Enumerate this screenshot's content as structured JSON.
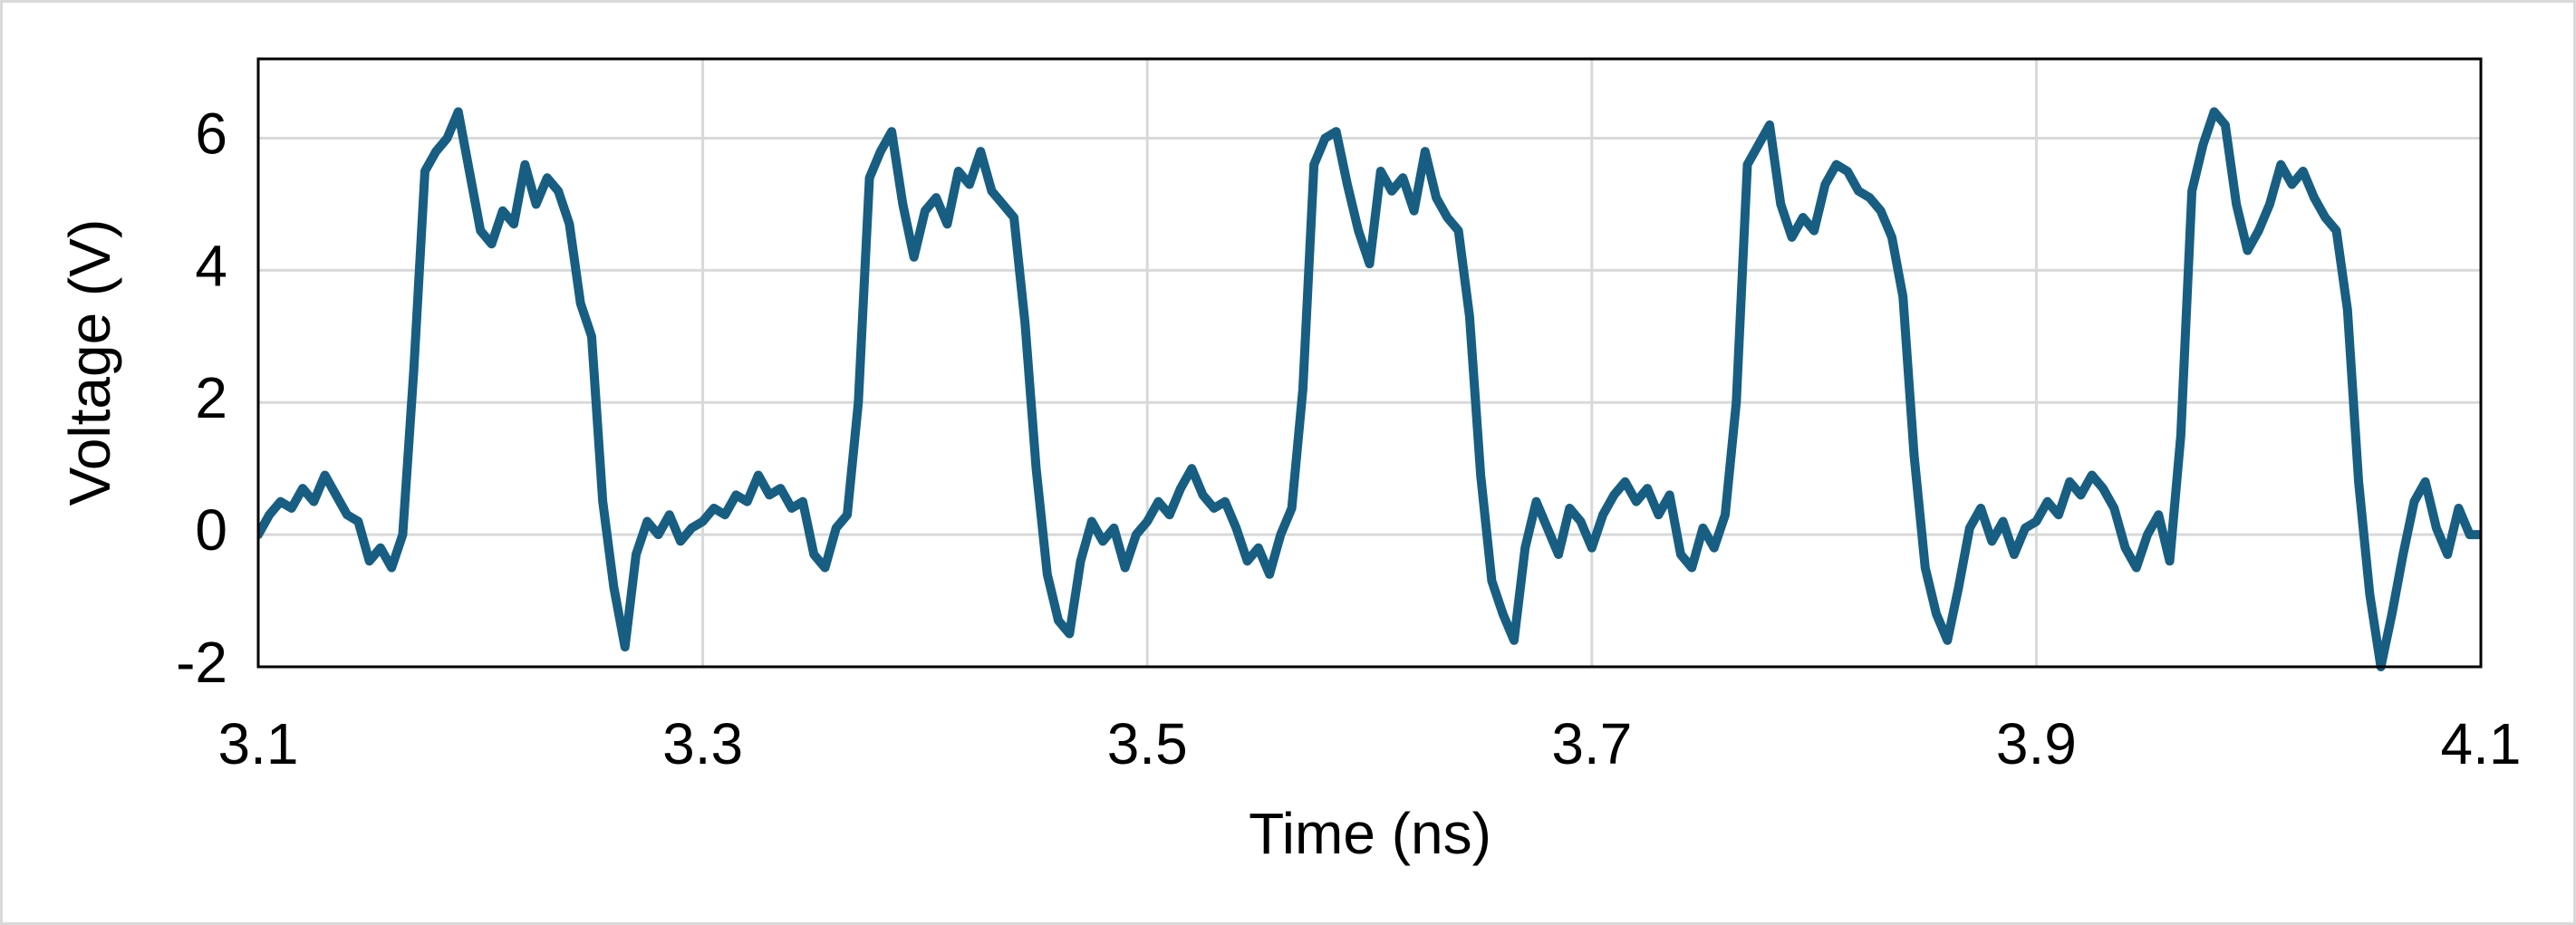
{
  "chart_data": {
    "type": "line",
    "x_label": "Time (ns)",
    "y_label": "Voltage (V)",
    "x": [
      3.1,
      3.105,
      3.11,
      3.115,
      3.12,
      3.125,
      3.13,
      3.135,
      3.14,
      3.145,
      3.15,
      3.155,
      3.16,
      3.165,
      3.17,
      3.175,
      3.18,
      3.185,
      3.19,
      3.195,
      3.2,
      3.205,
      3.21,
      3.215,
      3.22,
      3.225,
      3.23,
      3.235,
      3.24,
      3.245,
      3.25,
      3.255,
      3.26,
      3.265,
      3.27,
      3.275,
      3.28,
      3.285,
      3.29,
      3.295,
      3.3,
      3.305,
      3.31,
      3.315,
      3.32,
      3.325,
      3.33,
      3.335,
      3.34,
      3.345,
      3.35,
      3.355,
      3.36,
      3.365,
      3.37,
      3.375,
      3.38,
      3.385,
      3.39,
      3.395,
      3.4,
      3.405,
      3.41,
      3.415,
      3.42,
      3.425,
      3.43,
      3.435,
      3.44,
      3.445,
      3.45,
      3.455,
      3.46,
      3.465,
      3.47,
      3.475,
      3.48,
      3.485,
      3.49,
      3.495,
      3.5,
      3.505,
      3.51,
      3.515,
      3.52,
      3.525,
      3.53,
      3.535,
      3.54,
      3.545,
      3.55,
      3.555,
      3.56,
      3.565,
      3.57,
      3.575,
      3.58,
      3.585,
      3.59,
      3.595,
      3.6,
      3.605,
      3.61,
      3.615,
      3.62,
      3.625,
      3.63,
      3.635,
      3.64,
      3.645,
      3.65,
      3.655,
      3.66,
      3.665,
      3.67,
      3.675,
      3.68,
      3.685,
      3.69,
      3.695,
      3.7,
      3.705,
      3.71,
      3.715,
      3.72,
      3.725,
      3.73,
      3.735,
      3.74,
      3.745,
      3.75,
      3.755,
      3.76,
      3.765,
      3.77,
      3.775,
      3.78,
      3.785,
      3.79,
      3.795,
      3.8,
      3.805,
      3.81,
      3.815,
      3.82,
      3.825,
      3.83,
      3.835,
      3.84,
      3.845,
      3.85,
      3.855,
      3.86,
      3.865,
      3.87,
      3.875,
      3.88,
      3.885,
      3.89,
      3.895,
      3.9,
      3.905,
      3.91,
      3.915,
      3.92,
      3.925,
      3.93,
      3.935,
      3.94,
      3.945,
      3.95,
      3.955,
      3.96,
      3.965,
      3.97,
      3.975,
      3.98,
      3.985,
      3.99,
      3.995,
      4.0,
      4.005,
      4.01,
      4.015,
      4.02,
      4.025,
      4.03,
      4.035,
      4.04,
      4.045,
      4.05,
      4.055,
      4.06,
      4.065,
      4.07,
      4.075,
      4.08,
      4.085,
      4.09,
      4.095,
      4.1
    ],
    "series": [
      {
        "color": "#175e82",
        "values": [
          0.0,
          0.3,
          0.5,
          0.4,
          0.7,
          0.5,
          0.9,
          0.6,
          0.3,
          0.2,
          -0.4,
          -0.2,
          -0.5,
          0.0,
          2.5,
          5.5,
          5.8,
          6.0,
          6.4,
          5.5,
          4.6,
          4.4,
          4.9,
          4.7,
          5.6,
          5.0,
          5.4,
          5.2,
          4.7,
          3.5,
          3.0,
          0.5,
          -0.8,
          -1.7,
          -0.3,
          0.2,
          0.0,
          0.3,
          -0.1,
          0.1,
          0.2,
          0.4,
          0.3,
          0.6,
          0.5,
          0.9,
          0.6,
          0.7,
          0.4,
          0.5,
          -0.3,
          -0.5,
          0.1,
          0.3,
          2.0,
          5.4,
          5.8,
          6.1,
          5.0,
          4.2,
          4.9,
          5.1,
          4.7,
          5.5,
          5.3,
          5.8,
          5.2,
          5.0,
          4.8,
          3.2,
          1.0,
          -0.6,
          -1.3,
          -1.5,
          -0.4,
          0.2,
          -0.1,
          0.1,
          -0.5,
          0.0,
          0.2,
          0.5,
          0.3,
          0.7,
          1.0,
          0.6,
          0.4,
          0.5,
          0.1,
          -0.4,
          -0.2,
          -0.6,
          0.0,
          0.4,
          2.2,
          5.6,
          6.0,
          6.1,
          5.3,
          4.6,
          4.1,
          5.5,
          5.2,
          5.4,
          4.9,
          5.8,
          5.1,
          4.8,
          4.6,
          3.3,
          0.9,
          -0.7,
          -1.2,
          -1.6,
          -0.2,
          0.5,
          0.1,
          -0.3,
          0.4,
          0.2,
          -0.2,
          0.3,
          0.6,
          0.8,
          0.5,
          0.7,
          0.3,
          0.6,
          -0.3,
          -0.5,
          0.1,
          -0.2,
          0.3,
          2.0,
          5.6,
          5.9,
          6.2,
          5.0,
          4.5,
          4.8,
          4.6,
          5.3,
          5.6,
          5.5,
          5.2,
          5.1,
          4.9,
          4.5,
          3.6,
          1.2,
          -0.5,
          -1.2,
          -1.6,
          -0.8,
          0.1,
          0.4,
          -0.1,
          0.2,
          -0.3,
          0.1,
          0.2,
          0.5,
          0.3,
          0.8,
          0.6,
          0.9,
          0.7,
          0.4,
          -0.2,
          -0.5,
          0.0,
          0.3,
          -0.4,
          1.5,
          5.2,
          5.9,
          6.4,
          6.2,
          5.0,
          4.3,
          4.6,
          5.0,
          5.6,
          5.3,
          5.5,
          5.1,
          4.8,
          4.6,
          3.4,
          0.8,
          -0.9,
          -2.0,
          -1.2,
          -0.3,
          0.5,
          0.8,
          0.1,
          -0.3,
          0.4,
          0.0,
          0.0
        ]
      }
    ],
    "xlim": [
      3.1,
      4.1
    ],
    "xticks": [
      3.1,
      3.3,
      3.5,
      3.7,
      3.9,
      4.1
    ],
    "ylim": [
      -2,
      7.2
    ],
    "yticks": [
      -2,
      0,
      2,
      4,
      6
    ],
    "grid": true
  }
}
